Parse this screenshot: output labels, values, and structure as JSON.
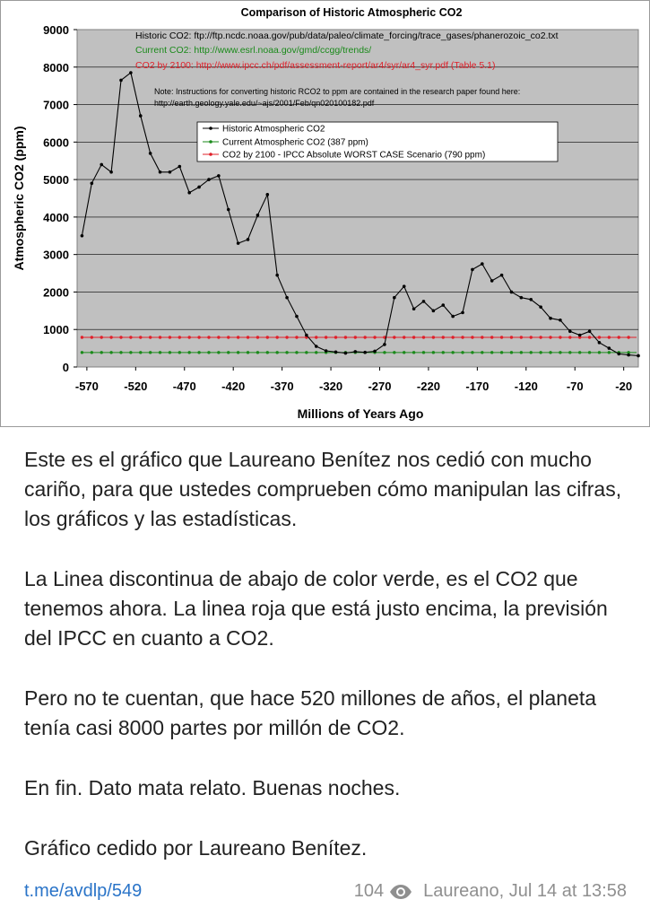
{
  "chart_data": {
    "type": "line",
    "title": "Comparison of Historic Atmospheric CO2",
    "xlabel": "Millions of Years Ago",
    "ylabel": "Atmospheric CO2 (ppm)",
    "xlim": [
      -580,
      -5
    ],
    "ylim": [
      0,
      9000
    ],
    "grid": "horizontal",
    "x_ticks": [
      "-570",
      "-520",
      "-470",
      "-420",
      "-370",
      "-320",
      "-270",
      "-220",
      "-170",
      "-120",
      "-70",
      "-20"
    ],
    "y_ticks": [
      "0",
      "1000",
      "2000",
      "3000",
      "4000",
      "5000",
      "6000",
      "7000",
      "8000",
      "9000"
    ],
    "series": [
      {
        "name": "Historic Atmospheric CO2",
        "color": "#000000",
        "x": [
          -575,
          -565,
          -555,
          -545,
          -535,
          -525,
          -515,
          -505,
          -495,
          -485,
          -475,
          -465,
          -455,
          -445,
          -435,
          -425,
          -415,
          -405,
          -395,
          -385,
          -375,
          -365,
          -355,
          -345,
          -335,
          -325,
          -315,
          -305,
          -295,
          -285,
          -275,
          -265,
          -255,
          -245,
          -235,
          -225,
          -215,
          -205,
          -195,
          -185,
          -175,
          -165,
          -155,
          -145,
          -135,
          -125,
          -115,
          -105,
          -95,
          -85,
          -75,
          -65,
          -55,
          -45,
          -35,
          -25,
          -15,
          -5
        ],
        "values": [
          3500,
          4900,
          5400,
          5200,
          7650,
          7850,
          6700,
          5700,
          5200,
          5200,
          5350,
          4650,
          4800,
          5000,
          5100,
          4200,
          3300,
          3400,
          4050,
          4600,
          2450,
          1850,
          1350,
          850,
          550,
          430,
          400,
          370,
          410,
          390,
          420,
          600,
          1850,
          2150,
          1550,
          1750,
          1500,
          1650,
          1350,
          1450,
          2600,
          2750,
          2300,
          2450,
          2000,
          1850,
          1800,
          1600,
          1300,
          1250,
          950,
          850,
          950,
          650,
          500,
          350,
          320,
          300
        ]
      },
      {
        "name": "Current Atmospheric CO2 (387 ppm)",
        "color": "#1a8a1a",
        "constant": 387
      },
      {
        "name": "CO2 by 2100 - IPCC Absolute WORST CASE Scenario (790 ppm)",
        "color": "#e0202a",
        "constant": 790
      }
    ],
    "annotations": {
      "source_historic": "Historic CO2: ftp://ftp.ncdc.noaa.gov/pub/data/paleo/climate_forcing/trace_gases/phanerozoic_co2.txt",
      "source_current": "Current CO2: http://www.esrl.noaa.gov/gmd/ccgg/trends/",
      "source_2100": "CO2 by 2100: http://www.ipcc.ch/pdf/assessment-report/ar4/syr/ar4_syr.pdf (Table 5.1)",
      "note_line1": "Note: Instructions for converting historic RCO2 to ppm are contained in the research paper found here:",
      "note_line2": "http://earth.geology.yale.edu/~ajs/2001/Feb/qn020100182.pdf"
    },
    "colors": {
      "plot_bg": "#c0c0c0",
      "green_text": "#1a8a1a",
      "red_text": "#e0202a"
    }
  },
  "message": {
    "paragraphs": [
      "Este es el gráfico que Laureano Benítez nos cedió con mucho cariño, para que ustedes comprueben cómo manipulan las cifras, los gráficos y las estadísticas.",
      "La Linea discontinua de abajo de color verde, es el CO2 que tenemos ahora. La linea roja que está justo encima, la previsión del IPCC en cuanto a CO2.",
      "Pero no te cuentan, que hace 520 millones de años, el planeta tenía casi 8000 partes por millón de CO2.",
      "En fin. Dato mata relato. Buenas noches.",
      "Gráfico cedido por Laureano Benítez."
    ]
  },
  "footer": {
    "link_text": "t.me/avdlp/549",
    "views": "104",
    "views_icon": "eye-icon",
    "author_time": "Laureano, Jul 14 at 13:58",
    "link_color": "#2a74c8",
    "meta_color": "#8f8f8f"
  }
}
